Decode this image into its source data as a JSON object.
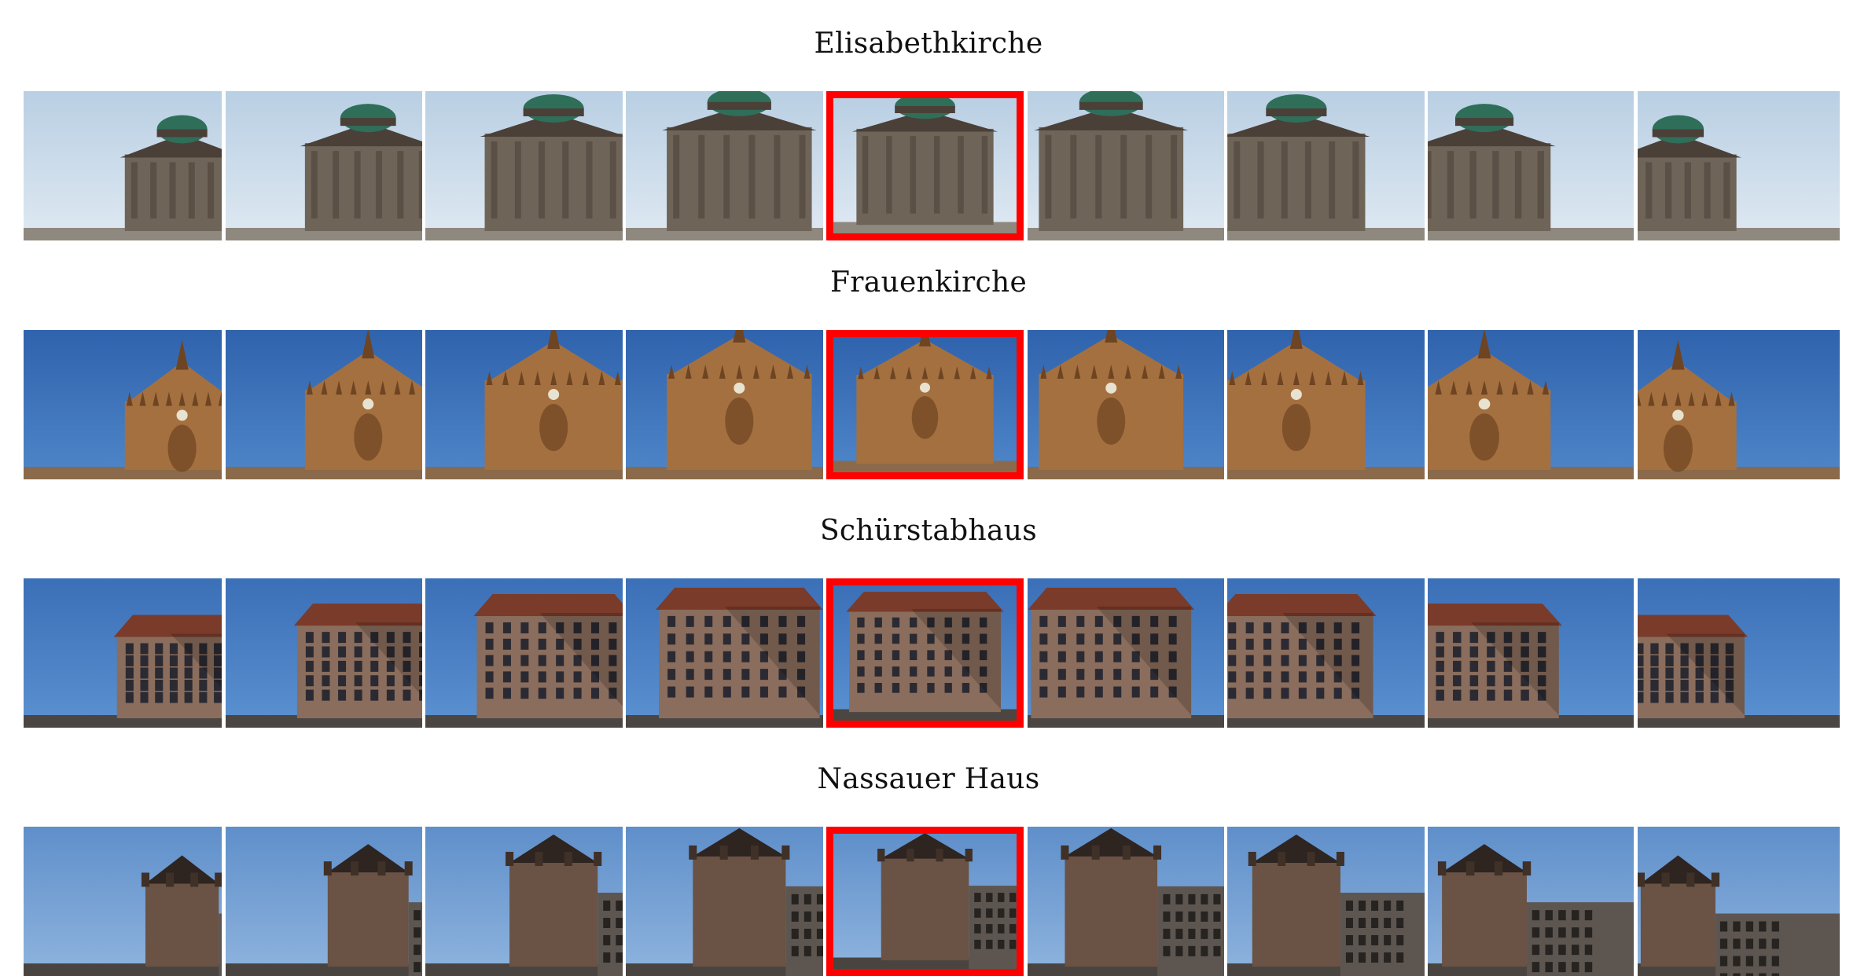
{
  "sections": [
    {
      "title": "Elisabethkirche",
      "subject": "domed-church",
      "palette": {
        "sky": "#dfe9f2",
        "skyTop": "#b9cfe3",
        "building": "#6f6458",
        "shade": "#4a4038",
        "ground": "#8e887f",
        "accent": "#2f6f5a"
      },
      "selected_index": 4,
      "thumbnail_count": 9
    },
    {
      "title": "Frauenkirche",
      "subject": "gothic-church",
      "palette": {
        "sky": "#4f86c9",
        "skyTop": "#2f63ad",
        "building": "#a4703f",
        "shade": "#6e4422",
        "ground": "#8a6a4a",
        "accent": "#c94b3a"
      },
      "selected_index": 4,
      "thumbnail_count": 9
    },
    {
      "title": "Schürstabhaus",
      "subject": "townhouse",
      "palette": {
        "sky": "#5b92d1",
        "skyTop": "#3b6fb7",
        "building": "#8a6d5c",
        "shade": "#5a4639",
        "ground": "#4b4641",
        "accent": "#7a3b2a"
      },
      "selected_index": 4,
      "thumbnail_count": 9
    },
    {
      "title": "Nassauer Haus",
      "subject": "tower-house",
      "palette": {
        "sky": "#8fb4de",
        "skyTop": "#5f8fca",
        "building": "#6a5244",
        "shade": "#3f3028",
        "ground": "#4a4440",
        "accent": "#2e2420"
      },
      "selected_index": 4,
      "thumbnail_count": 9
    }
  ]
}
